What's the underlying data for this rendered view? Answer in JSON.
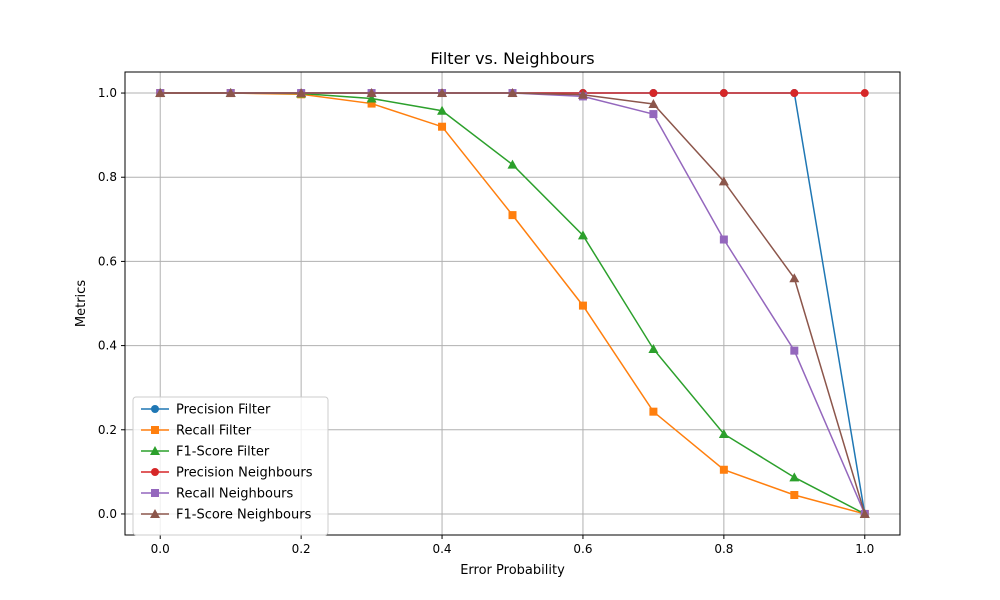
{
  "chart_data": {
    "type": "line",
    "title": "Filter vs. Neighbours",
    "xlabel": "Error Probability",
    "ylabel": "Metrics",
    "xlim": [
      -0.05,
      1.05
    ],
    "ylim": [
      -0.05,
      1.05
    ],
    "xticks": [
      0.0,
      0.2,
      0.4,
      0.6,
      0.8,
      1.0
    ],
    "yticks": [
      0.0,
      0.2,
      0.4,
      0.6,
      0.8,
      1.0
    ],
    "xtick_labels": [
      "0.0",
      "0.2",
      "0.4",
      "0.6",
      "0.8",
      "1.0"
    ],
    "ytick_labels": [
      "0.0",
      "0.2",
      "0.4",
      "0.6",
      "0.8",
      "1.0"
    ],
    "grid": true,
    "legend_position": "lower-left",
    "x": [
      0.0,
      0.1,
      0.2,
      0.3,
      0.4,
      0.5,
      0.6,
      0.7,
      0.8,
      0.9,
      1.0
    ],
    "series": [
      {
        "name": "Precision Filter",
        "color": "#1f77b4",
        "marker": "circle",
        "values": [
          1.0,
          1.0,
          1.0,
          1.0,
          1.0,
          1.0,
          1.0,
          1.0,
          1.0,
          1.0,
          0.0
        ]
      },
      {
        "name": "Recall Filter",
        "color": "#ff7f0e",
        "marker": "square",
        "values": [
          1.0,
          1.0,
          0.997,
          0.975,
          0.92,
          0.71,
          0.495,
          0.243,
          0.105,
          0.045,
          0.0
        ]
      },
      {
        "name": "F1-Score Filter",
        "color": "#2ca02c",
        "marker": "triangle",
        "values": [
          1.0,
          1.0,
          0.999,
          0.987,
          0.958,
          0.83,
          0.662,
          0.392,
          0.19,
          0.087,
          0.0
        ]
      },
      {
        "name": "Precision Neighbours",
        "color": "#d62728",
        "marker": "circle",
        "values": [
          1.0,
          1.0,
          1.0,
          1.0,
          1.0,
          1.0,
          1.0,
          1.0,
          1.0,
          1.0,
          1.0
        ]
      },
      {
        "name": "Recall Neighbours",
        "color": "#9467bd",
        "marker": "square",
        "values": [
          1.0,
          1.0,
          1.0,
          1.0,
          1.0,
          1.0,
          0.992,
          0.95,
          0.652,
          0.388,
          0.0
        ]
      },
      {
        "name": "F1-Score Neighbours",
        "color": "#8c564b",
        "marker": "triangle",
        "values": [
          1.0,
          1.0,
          1.0,
          1.0,
          1.0,
          1.0,
          0.996,
          0.974,
          0.79,
          0.56,
          0.0
        ]
      }
    ]
  }
}
